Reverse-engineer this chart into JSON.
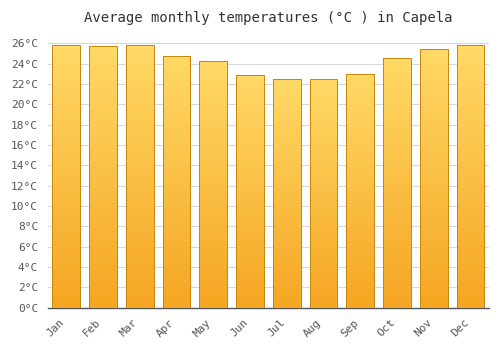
{
  "title": "Average monthly temperatures (°C ) in Capela",
  "months": [
    "Jan",
    "Feb",
    "Mar",
    "Apr",
    "May",
    "Jun",
    "Jul",
    "Aug",
    "Sep",
    "Oct",
    "Nov",
    "Dec"
  ],
  "values": [
    25.8,
    25.7,
    25.8,
    24.8,
    24.3,
    22.9,
    22.5,
    22.5,
    23.0,
    24.6,
    25.4,
    25.8
  ],
  "bar_color_bottom": "#F5A623",
  "bar_color_top": "#FFD966",
  "bar_edge_color": "#C8850A",
  "ylim": [
    0,
    27
  ],
  "ytick_step": 2,
  "background_color": "#ffffff",
  "plot_bg_color": "#ffffff",
  "grid_color": "#d0d0d0",
  "title_fontsize": 10,
  "tick_fontsize": 8,
  "font_family": "monospace",
  "bar_width": 0.75
}
